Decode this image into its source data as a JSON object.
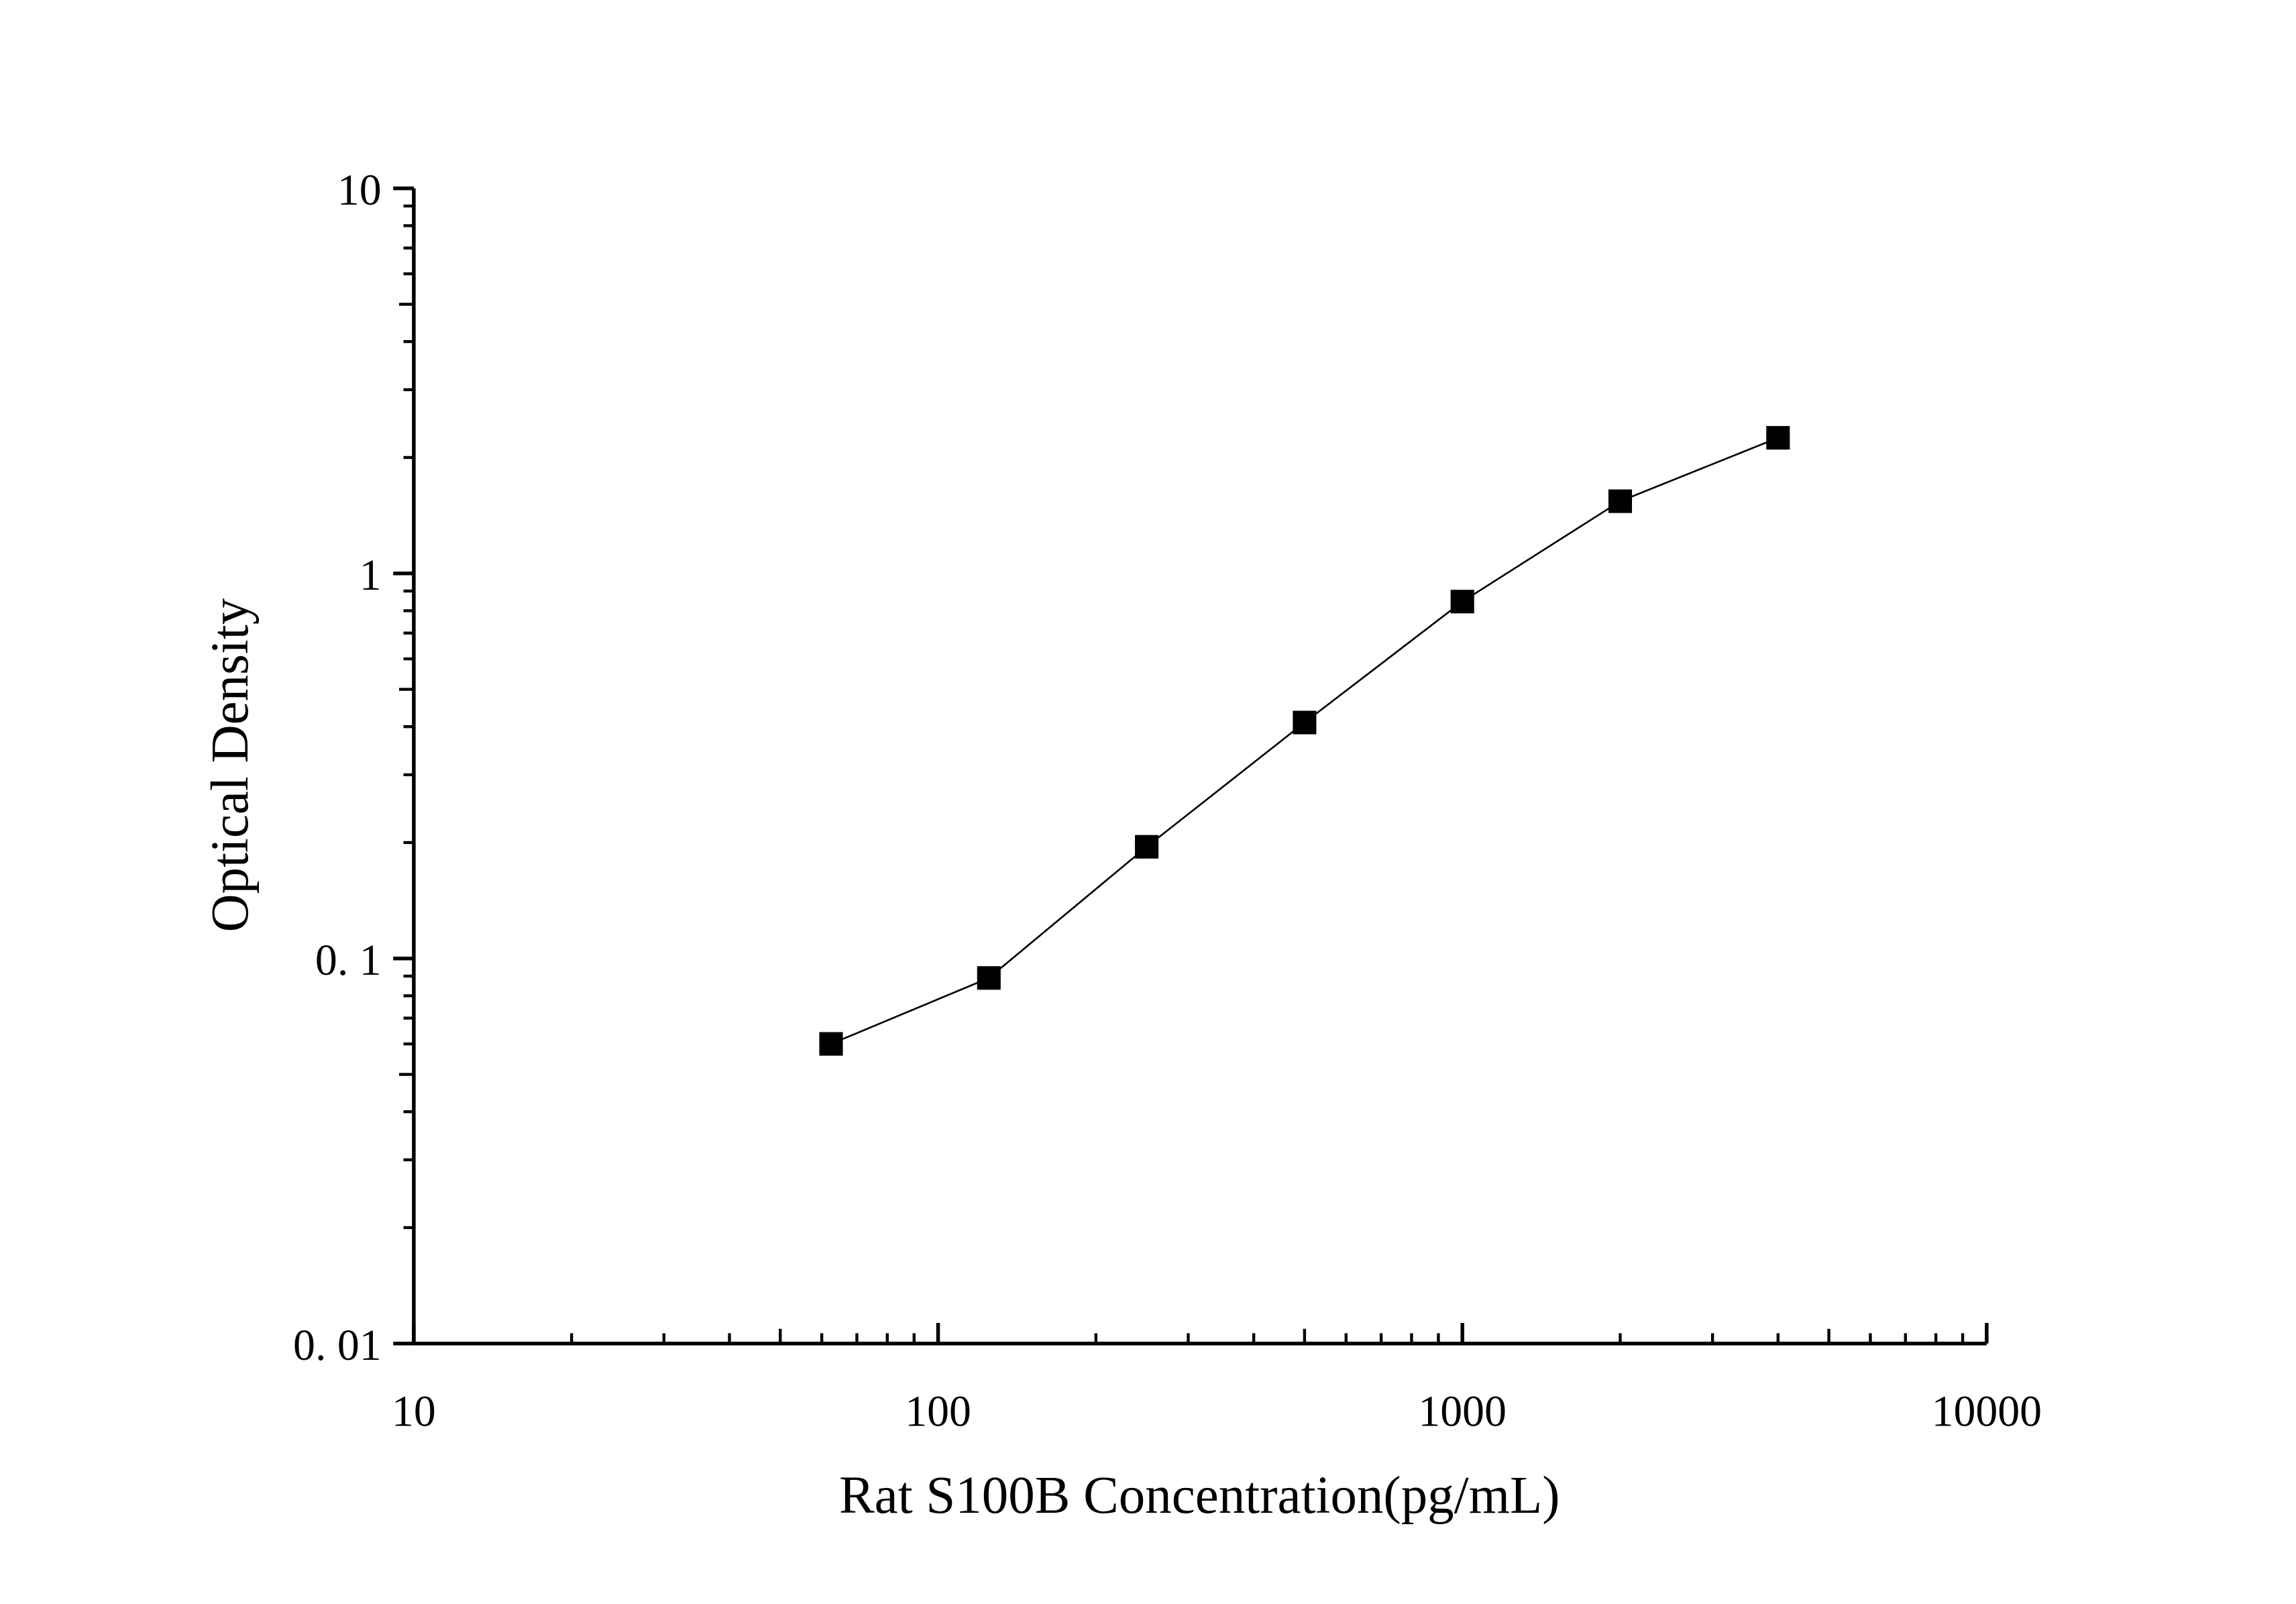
{
  "chart_data": {
    "type": "line",
    "title": "",
    "xlabel": "Rat S100B Concentration(pg/mL)",
    "ylabel": "Optical Density",
    "x_scale": "log",
    "y_scale": "log",
    "xlim": [
      10,
      10000
    ],
    "ylim": [
      0.01,
      10
    ],
    "x_ticks": [
      {
        "v": 10,
        "label": "10"
      },
      {
        "v": 100,
        "label": "100"
      },
      {
        "v": 1000,
        "label": "1000"
      },
      {
        "v": 10000,
        "label": "10000"
      }
    ],
    "y_ticks": [
      {
        "v": 0.01,
        "label": "0. 01"
      },
      {
        "v": 0.1,
        "label": "0. 1"
      },
      {
        "v": 1,
        "label": "1"
      },
      {
        "v": 10,
        "label": "10"
      }
    ],
    "grid": false,
    "marker": "square",
    "color": "#000000",
    "series": [
      {
        "x": [
          62.5,
          125,
          250,
          500,
          1000,
          2000,
          4000
        ],
        "y": [
          0.06,
          0.089,
          0.195,
          0.41,
          0.845,
          1.54,
          2.25
        ]
      }
    ]
  }
}
